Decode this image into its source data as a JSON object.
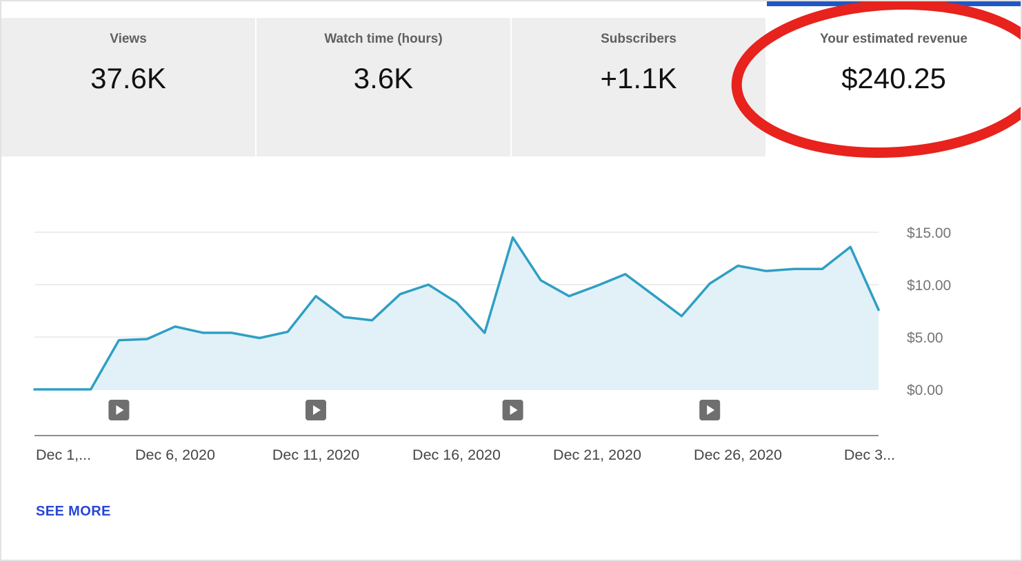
{
  "tabs": [
    {
      "label": "Views",
      "value": "37.6K",
      "selected": false
    },
    {
      "label": "Watch time (hours)",
      "value": "3.6K",
      "selected": false
    },
    {
      "label": "Subscribers",
      "value": "+1.1K",
      "selected": false
    },
    {
      "label": "Your estimated revenue",
      "value": "$240.25",
      "selected": true
    }
  ],
  "see_more_label": "SEE MORE",
  "colors": {
    "accent_blue": "#2157c4",
    "line": "#2f9fc4",
    "area_fill": "#e2f1f8",
    "gridline": "#e7e7e7",
    "axis_line": "#8e8e8e",
    "marker_gray": "#6f6f6f",
    "link_blue": "#2746d6",
    "annotation_red": "#e8221c"
  },
  "chart_data": {
    "type": "area",
    "title": "",
    "xlabel": "",
    "ylabel": "",
    "grid": true,
    "legend": false,
    "y_axis_position": "right",
    "ylim": [
      0,
      15
    ],
    "y_ticks": [
      0,
      5,
      10,
      15
    ],
    "y_tick_labels": [
      "$0.00",
      "$5.00",
      "$10.00",
      "$15.00"
    ],
    "x": [
      "Dec 1, 2020",
      "Dec 2, 2020",
      "Dec 3, 2020",
      "Dec 4, 2020",
      "Dec 5, 2020",
      "Dec 6, 2020",
      "Dec 7, 2020",
      "Dec 8, 2020",
      "Dec 9, 2020",
      "Dec 10, 2020",
      "Dec 11, 2020",
      "Dec 12, 2020",
      "Dec 13, 2020",
      "Dec 14, 2020",
      "Dec 15, 2020",
      "Dec 16, 2020",
      "Dec 17, 2020",
      "Dec 18, 2020",
      "Dec 19, 2020",
      "Dec 20, 2020",
      "Dec 21, 2020",
      "Dec 22, 2020",
      "Dec 23, 2020",
      "Dec 24, 2020",
      "Dec 25, 2020",
      "Dec 26, 2020",
      "Dec 27, 2020",
      "Dec 28, 2020",
      "Dec 29, 2020",
      "Dec 30, 2020",
      "Dec 31, 2020"
    ],
    "values": [
      0,
      0,
      0,
      4.7,
      4.8,
      6.0,
      5.4,
      5.4,
      4.9,
      5.5,
      8.9,
      6.9,
      6.6,
      9.1,
      10.0,
      8.3,
      5.4,
      14.5,
      10.4,
      8.9,
      9.9,
      11.0,
      9.0,
      7.0,
      10.1,
      11.8,
      11.3,
      11.5,
      11.5,
      13.6,
      7.6
    ],
    "x_tick_indices": [
      0,
      5,
      10,
      15,
      20,
      25,
      30
    ],
    "x_tick_labels": [
      "Dec 1,...",
      "Dec 6, 2020",
      "Dec 11, 2020",
      "Dec 16, 2020",
      "Dec 21, 2020",
      "Dec 26, 2020",
      "Dec 3..."
    ],
    "video_marker_indices": [
      3,
      10,
      17,
      24
    ]
  }
}
